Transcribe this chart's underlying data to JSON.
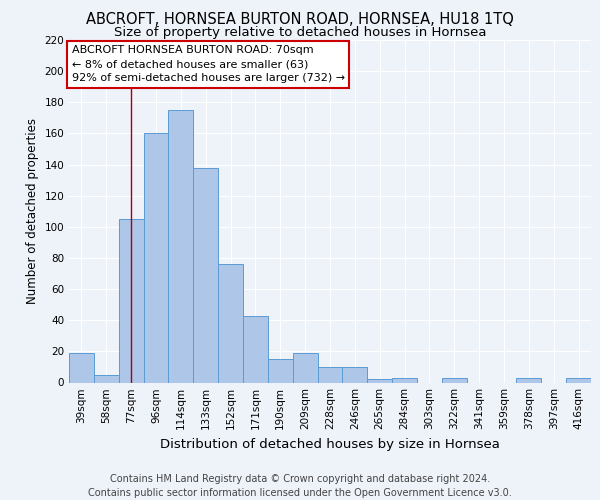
{
  "title": "ABCROFT, HORNSEA BURTON ROAD, HORNSEA, HU18 1TQ",
  "subtitle": "Size of property relative to detached houses in Hornsea",
  "xlabel": "Distribution of detached houses by size in Hornsea",
  "ylabel": "Number of detached properties",
  "categories": [
    "39sqm",
    "58sqm",
    "77sqm",
    "96sqm",
    "114sqm",
    "133sqm",
    "152sqm",
    "171sqm",
    "190sqm",
    "209sqm",
    "228sqm",
    "246sqm",
    "265sqm",
    "284sqm",
    "303sqm",
    "322sqm",
    "341sqm",
    "359sqm",
    "378sqm",
    "397sqm",
    "416sqm"
  ],
  "bar_heights": [
    19,
    5,
    105,
    160,
    175,
    138,
    76,
    43,
    15,
    19,
    10,
    10,
    2,
    3,
    0,
    3,
    0,
    0,
    3,
    0,
    3
  ],
  "bar_color": "#aec6e8",
  "bar_edge_color": "#5b9bd5",
  "background_color": "#eef2f9",
  "grid_color": "#ffffff",
  "red_line_x": 2.0,
  "annotation_text": "ABCROFT HORNSEA BURTON ROAD: 70sqm\n← 8% of detached houses are smaller (63)\n92% of semi-detached houses are larger (732) →",
  "annotation_box_color": "#ffffff",
  "annotation_box_edge": "#cc0000",
  "ylim": [
    0,
    220
  ],
  "yticks": [
    0,
    20,
    40,
    60,
    80,
    100,
    120,
    140,
    160,
    180,
    200,
    220
  ],
  "footnote": "Contains HM Land Registry data © Crown copyright and database right 2024.\nContains public sector information licensed under the Open Government Licence v3.0.",
  "title_fontsize": 10.5,
  "subtitle_fontsize": 9.5,
  "xlabel_fontsize": 9.5,
  "ylabel_fontsize": 8.5,
  "tick_fontsize": 7.5,
  "annotation_fontsize": 8,
  "footnote_fontsize": 7
}
